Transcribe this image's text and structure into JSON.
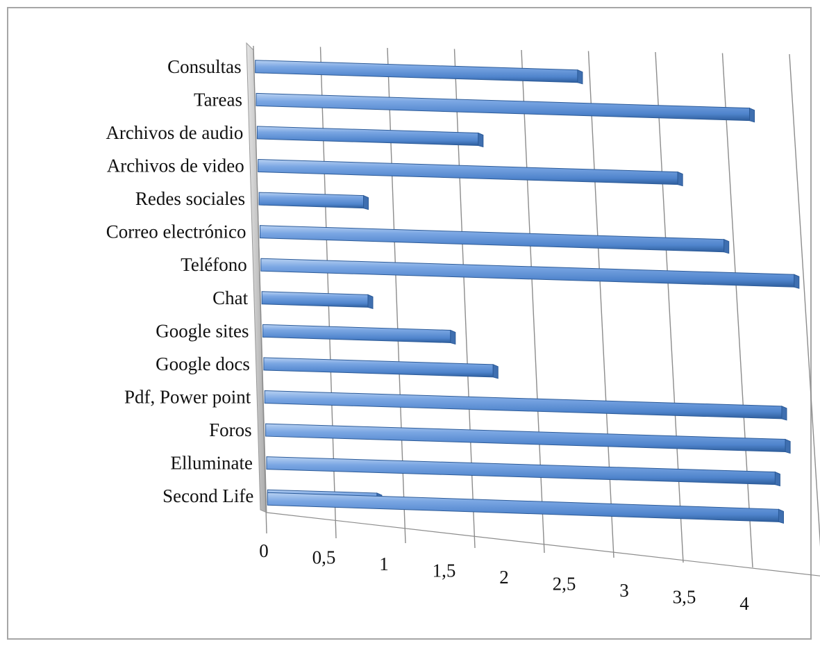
{
  "chart_data": {
    "type": "bar",
    "orientation": "horizontal",
    "style": "3d",
    "title": "",
    "xlabel": "",
    "ylabel": "",
    "xlim": [
      0,
      4
    ],
    "grid": true,
    "legend": "none",
    "categories": [
      "Consultas",
      "Tareas",
      "Archivos de audio",
      "Archivos de video",
      "Redes sociales",
      "Correo electrónico",
      "Teléfono",
      "Chat",
      "Google sites",
      "Google docs",
      "Pdf, Power point",
      "Foros",
      "Elluminate",
      "Second Life"
    ],
    "series": [
      {
        "values": [
          2.5,
          3.8,
          1.7,
          3.2,
          0.8,
          3.5,
          4.0,
          0.8,
          1.4,
          1.7,
          3.8,
          3.8,
          3.7,
          0.8
        ]
      },
      {
        "values": [
          null,
          null,
          null,
          null,
          null,
          null,
          null,
          null,
          null,
          null,
          null,
          null,
          null,
          3.7
        ]
      }
    ],
    "tick_labels": [
      "0",
      "0,5",
      "1",
      "1,5",
      "2",
      "2,5",
      "3",
      "3,5",
      "4"
    ],
    "colors": {
      "bar": "#5b8fd6",
      "bar_light": "#a9c6ef",
      "bar_dark": "#2f5f9e",
      "bar_end": "#3f6fb0",
      "grid": "#8c8c8c",
      "wall": "#c8c8c8",
      "frame": "#a6a6a6"
    }
  }
}
